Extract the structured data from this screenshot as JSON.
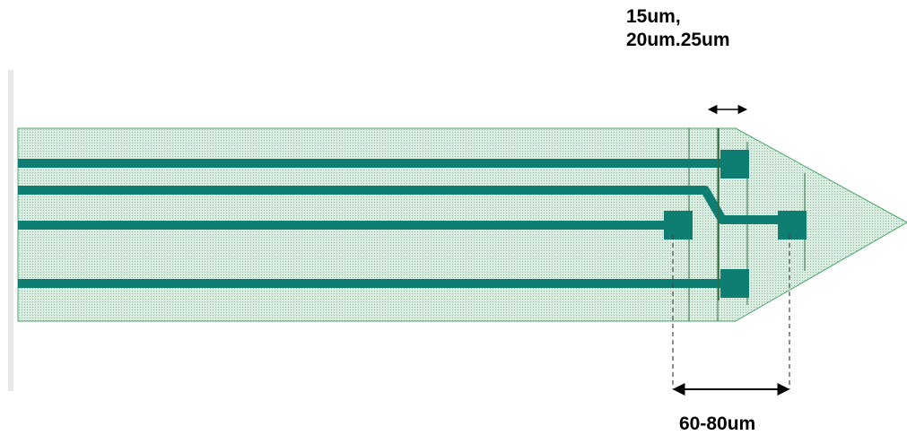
{
  "colors": {
    "probe_fill": "#d9eee0",
    "probe_dots": "#8fb39c",
    "probe_outline": "#4aa86a",
    "trace": "#0e7d72",
    "pad": "#0e7d72",
    "guide_line": "#2f6b3f",
    "dimension": "#000000",
    "background": "#ffffff",
    "wall": "#e8e8e8"
  },
  "labels": {
    "pitch_line1": "15um,",
    "pitch_line2": "20um.25um",
    "span": "60-80um"
  },
  "icons": {
    "pitch_arrow": "double-headed-arrow",
    "span_arrow": "double-headed-arrow"
  }
}
